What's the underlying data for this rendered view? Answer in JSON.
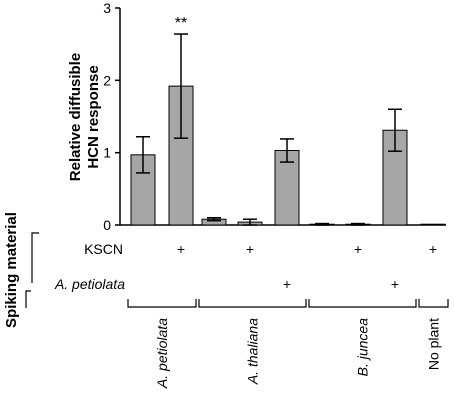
{
  "chart_data": {
    "type": "bar",
    "ylabel_lines": [
      "Relative diffusible",
      "HCN response"
    ],
    "ylim": [
      0,
      3
    ],
    "yticks": [
      "0",
      "1",
      "2",
      "3"
    ],
    "bar_color": "#a6a6a6",
    "bars": [
      {
        "value": 0.97,
        "error": 0.25,
        "sig": ""
      },
      {
        "value": 1.92,
        "error": 0.72,
        "sig": "**"
      },
      {
        "value": 0.08,
        "error": 0.02,
        "sig": ""
      },
      {
        "value": 0.04,
        "error": 0.04,
        "sig": ""
      },
      {
        "value": 1.03,
        "error": 0.16,
        "sig": ""
      },
      {
        "value": 0.01,
        "error": 0.01,
        "sig": ""
      },
      {
        "value": 0.01,
        "error": 0.01,
        "sig": ""
      },
      {
        "value": 1.31,
        "error": 0.29,
        "sig": ""
      },
      {
        "value": 0.0,
        "error": 0.0,
        "sig": ""
      }
    ],
    "spiking_title": "Spiking material",
    "spiking_rows": [
      {
        "label": "KSCN",
        "marks": [
          "",
          "+",
          "",
          "+",
          "",
          "",
          "+",
          "",
          "+"
        ]
      },
      {
        "label": "A. petiolata",
        "italic": true,
        "marks": [
          "",
          "",
          "",
          "",
          "+",
          "",
          "",
          "+",
          ""
        ]
      }
    ],
    "groups": [
      {
        "label": "A. petiolata",
        "italic": true,
        "start": 0,
        "end": 1
      },
      {
        "label": "A. thaliana",
        "italic": true,
        "start": 2,
        "end": 4
      },
      {
        "label": "B. juncea",
        "italic": true,
        "start": 5,
        "end": 7
      },
      {
        "label": "No plant",
        "italic": false,
        "start": 8,
        "end": 8
      }
    ]
  }
}
